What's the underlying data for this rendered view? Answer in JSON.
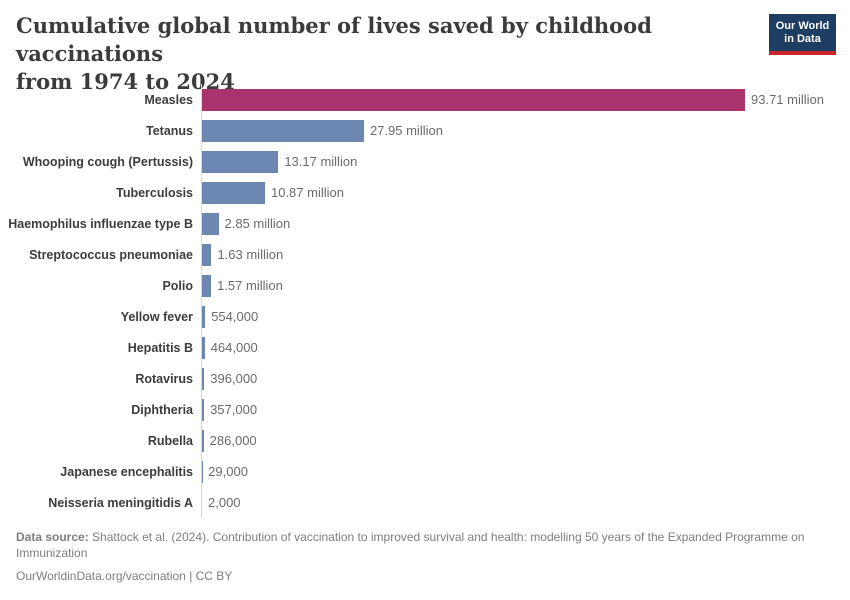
{
  "header": {
    "title": "Cumulative global number of lives saved by childhood vaccinations\nfrom 1974 to 2024",
    "logo_text": "Our World\nin Data"
  },
  "chart_data": {
    "type": "bar",
    "orientation": "horizontal",
    "title": "Cumulative global number of lives saved by childhood vaccinations from 1974 to 2024",
    "categories": [
      "Measles",
      "Tetanus",
      "Whooping cough (Pertussis)",
      "Tuberculosis",
      "Haemophilus influenzae type B",
      "Streptococcus pneumoniae",
      "Polio",
      "Yellow fever",
      "Hepatitis B",
      "Rotavirus",
      "Diphtheria",
      "Rubella",
      "Japanese encephalitis",
      "Neisseria meningitidis A"
    ],
    "values": [
      93710000,
      27950000,
      13170000,
      10870000,
      2850000,
      1630000,
      1570000,
      554000,
      464000,
      396000,
      357000,
      286000,
      29000,
      2000
    ],
    "value_labels": [
      "93.71 million",
      "27.95 million",
      "13.17 million",
      "10.87 million",
      "2.85 million",
      "1.63 million",
      "1.57 million",
      "554,000",
      "464,000",
      "396,000",
      "357,000",
      "286,000",
      "29,000",
      "2,000"
    ],
    "xlim": [
      0,
      93710000
    ],
    "grid": false,
    "legend": "none",
    "highlight_index": 0,
    "colors": {
      "highlight": "#a8336d",
      "default": "#6d87b3",
      "axis_line": "#d8d8d8"
    }
  },
  "footer": {
    "data_source_label": "Data source:",
    "data_source_text": " Shattock et al. (2024). Contribution of vaccination to improved survival and health: modelling 50 years of the Expanded Programme on Immunization",
    "link_line": "OurWorldinData.org/vaccination | CC BY"
  }
}
